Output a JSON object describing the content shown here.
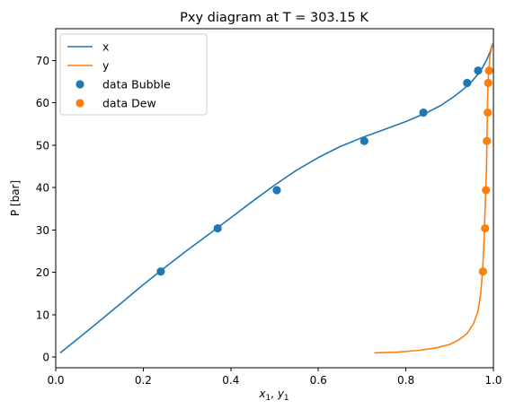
{
  "chart_data": {
    "type": "line",
    "title": "Pxy diagram at T = 303.15 K",
    "xlabel": "x1, y1",
    "ylabel": "P [bar]",
    "xlim": [
      0.0,
      1.0
    ],
    "ylim": [
      -2.5,
      77.5
    ],
    "xticks": [
      0.0,
      0.2,
      0.4,
      0.6,
      0.8,
      1.0
    ],
    "xtick_labels": [
      "0.0",
      "0.2",
      "0.4",
      "0.6",
      "0.8",
      "1.0"
    ],
    "yticks": [
      0,
      10,
      20,
      30,
      40,
      50,
      60,
      70
    ],
    "ytick_labels": [
      "0",
      "10",
      "20",
      "30",
      "40",
      "50",
      "60",
      "70"
    ],
    "grid": false,
    "legend_position": "top-left",
    "colors": {
      "x": "#1f77b4",
      "y": "#ff7f0e",
      "data Bubble": "#1f77b4",
      "data Dew": "#ff7f0e"
    },
    "series": [
      {
        "name": "x",
        "kind": "line",
        "points": [
          [
            0.01,
            1.0
          ],
          [
            0.05,
            4.3
          ],
          [
            0.1,
            8.5
          ],
          [
            0.15,
            12.8
          ],
          [
            0.2,
            17.1
          ],
          [
            0.25,
            21.2
          ],
          [
            0.3,
            25.2
          ],
          [
            0.35,
            29.0
          ],
          [
            0.4,
            32.9
          ],
          [
            0.45,
            36.8
          ],
          [
            0.5,
            40.6
          ],
          [
            0.55,
            44.1
          ],
          [
            0.6,
            47.1
          ],
          [
            0.65,
            49.7
          ],
          [
            0.7,
            51.8
          ],
          [
            0.75,
            53.7
          ],
          [
            0.8,
            55.6
          ],
          [
            0.85,
            57.8
          ],
          [
            0.88,
            59.4
          ],
          [
            0.91,
            61.5
          ],
          [
            0.93,
            63.1
          ],
          [
            0.95,
            65.0
          ],
          [
            0.965,
            66.8
          ],
          [
            0.975,
            68.3
          ],
          [
            0.985,
            70.2
          ],
          [
            0.993,
            72.2
          ],
          [
            0.998,
            74.0
          ]
        ]
      },
      {
        "name": "y",
        "kind": "line",
        "points": [
          [
            0.728,
            1.0
          ],
          [
            0.78,
            1.2
          ],
          [
            0.83,
            1.6
          ],
          [
            0.87,
            2.2
          ],
          [
            0.9,
            3.0
          ],
          [
            0.92,
            4.0
          ],
          [
            0.94,
            5.6
          ],
          [
            0.955,
            8.0
          ],
          [
            0.965,
            11.0
          ],
          [
            0.971,
            15.0
          ],
          [
            0.975,
            20.0
          ],
          [
            0.978,
            26.0
          ],
          [
            0.98,
            32.0
          ],
          [
            0.982,
            38.0
          ],
          [
            0.984,
            44.0
          ],
          [
            0.985,
            50.0
          ],
          [
            0.986,
            56.0
          ],
          [
            0.987,
            62.0
          ],
          [
            0.989,
            67.0
          ],
          [
            0.992,
            71.0
          ],
          [
            0.998,
            74.0
          ]
        ]
      },
      {
        "name": "data Bubble",
        "kind": "scatter",
        "points": [
          [
            0.24,
            20.2
          ],
          [
            0.37,
            30.4
          ],
          [
            0.505,
            39.4
          ],
          [
            0.705,
            51.0
          ],
          [
            0.84,
            57.7
          ],
          [
            0.94,
            64.7
          ],
          [
            0.965,
            67.6
          ]
        ]
      },
      {
        "name": "data Dew",
        "kind": "scatter",
        "points": [
          [
            0.976,
            20.2
          ],
          [
            0.981,
            30.4
          ],
          [
            0.983,
            39.4
          ],
          [
            0.985,
            51.0
          ],
          [
            0.987,
            57.7
          ],
          [
            0.988,
            64.7
          ],
          [
            0.99,
            67.6
          ]
        ]
      }
    ]
  }
}
